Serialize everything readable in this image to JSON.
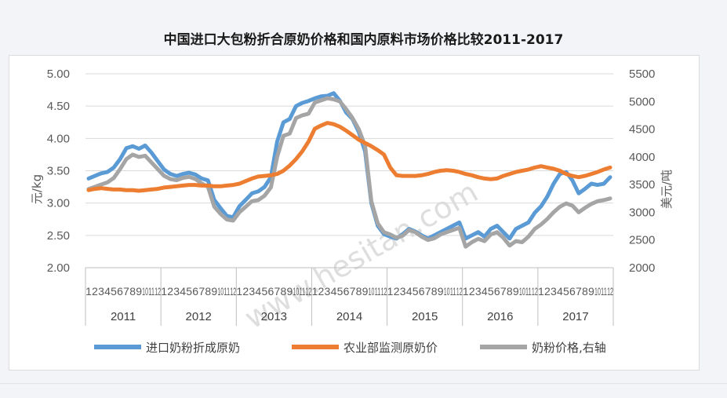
{
  "title": "中国进口大包粉折合原奶价格和国内原料市场价格比较2011-2017",
  "watermark": "www.hesitan.com",
  "chart_data": {
    "type": "line",
    "title": "中国进口大包粉折合原奶价格和国内原料市场价格比较2011-2017",
    "ylabel_left": "元/kg",
    "ylabel_right": "美元/吨",
    "ylim_left": [
      2.0,
      5.0
    ],
    "ylim_right": [
      2000,
      5500
    ],
    "yticks_left": [
      "5.00",
      "4.50",
      "4.00",
      "3.50",
      "3.00",
      "2.50",
      "2.00"
    ],
    "yticks_right": [
      "5500",
      "5000",
      "4500",
      "4000",
      "3500",
      "3000",
      "2500",
      "2000"
    ],
    "years": [
      "2011",
      "2012",
      "2013",
      "2014",
      "2015",
      "2016",
      "2017"
    ],
    "months": [
      "1",
      "2",
      "3",
      "4",
      "5",
      "6",
      "7",
      "8",
      "9",
      "10",
      "11",
      "12"
    ],
    "gridlines": true,
    "legend_position": "bottom",
    "colors": {
      "series1": "#5b9bd5",
      "series2": "#ed7d31",
      "series3": "#a5a5a5"
    },
    "series": [
      {
        "name": "进口奶粉折成原奶",
        "axis": "left",
        "values": [
          3.38,
          3.42,
          3.46,
          3.48,
          3.55,
          3.68,
          3.85,
          3.88,
          3.84,
          3.89,
          3.78,
          3.65,
          3.52,
          3.45,
          3.42,
          3.45,
          3.47,
          3.44,
          3.38,
          3.35,
          3.05,
          2.92,
          2.8,
          2.78,
          2.95,
          3.05,
          3.15,
          3.18,
          3.25,
          3.4,
          3.95,
          4.25,
          4.3,
          4.5,
          4.55,
          4.58,
          4.62,
          4.65,
          4.66,
          4.7,
          4.58,
          4.4,
          4.3,
          4.1,
          3.8,
          3.0,
          2.65,
          2.52,
          2.48,
          2.45,
          2.52,
          2.6,
          2.56,
          2.5,
          2.45,
          2.5,
          2.55,
          2.6,
          2.65,
          2.7,
          2.45,
          2.5,
          2.55,
          2.48,
          2.6,
          2.65,
          2.55,
          2.45,
          2.6,
          2.65,
          2.7,
          2.85,
          2.95,
          3.1,
          3.3,
          3.45,
          3.48,
          3.35,
          3.15,
          3.22,
          3.3,
          3.28,
          3.3,
          3.4
        ]
      },
      {
        "name": "农业部监测原奶价",
        "axis": "left",
        "values": [
          3.2,
          3.22,
          3.23,
          3.22,
          3.21,
          3.21,
          3.2,
          3.2,
          3.19,
          3.2,
          3.21,
          3.22,
          3.24,
          3.25,
          3.26,
          3.27,
          3.28,
          3.28,
          3.27,
          3.27,
          3.26,
          3.26,
          3.27,
          3.28,
          3.3,
          3.34,
          3.38,
          3.41,
          3.42,
          3.43,
          3.45,
          3.5,
          3.58,
          3.68,
          3.8,
          3.95,
          4.15,
          4.2,
          4.24,
          4.22,
          4.18,
          4.12,
          4.05,
          3.98,
          3.93,
          3.88,
          3.82,
          3.75,
          3.55,
          3.43,
          3.42,
          3.42,
          3.42,
          3.43,
          3.45,
          3.48,
          3.5,
          3.51,
          3.5,
          3.48,
          3.45,
          3.43,
          3.4,
          3.38,
          3.37,
          3.38,
          3.42,
          3.45,
          3.48,
          3.5,
          3.52,
          3.55,
          3.57,
          3.55,
          3.53,
          3.5,
          3.45,
          3.42,
          3.4,
          3.42,
          3.45,
          3.48,
          3.52,
          3.55
        ]
      },
      {
        "name": "奶粉价格,右轴",
        "axis": "right",
        "values": [
          3420,
          3460,
          3500,
          3540,
          3620,
          3780,
          3960,
          4040,
          4000,
          4020,
          3900,
          3780,
          3660,
          3600,
          3580,
          3620,
          3640,
          3600,
          3520,
          3460,
          3100,
          2970,
          2870,
          2850,
          3000,
          3100,
          3200,
          3220,
          3300,
          3450,
          4000,
          4380,
          4420,
          4700,
          4750,
          4780,
          4980,
          5020,
          5060,
          5040,
          5000,
          4860,
          4700,
          4500,
          4200,
          3200,
          2800,
          2640,
          2600,
          2540,
          2580,
          2680,
          2640,
          2560,
          2500,
          2530,
          2600,
          2640,
          2680,
          2720,
          2380,
          2460,
          2520,
          2480,
          2600,
          2640,
          2540,
          2400,
          2480,
          2460,
          2560,
          2700,
          2780,
          2880,
          3000,
          3100,
          3160,
          3120,
          3000,
          3080,
          3150,
          3200,
          3220,
          3250
        ]
      }
    ]
  }
}
